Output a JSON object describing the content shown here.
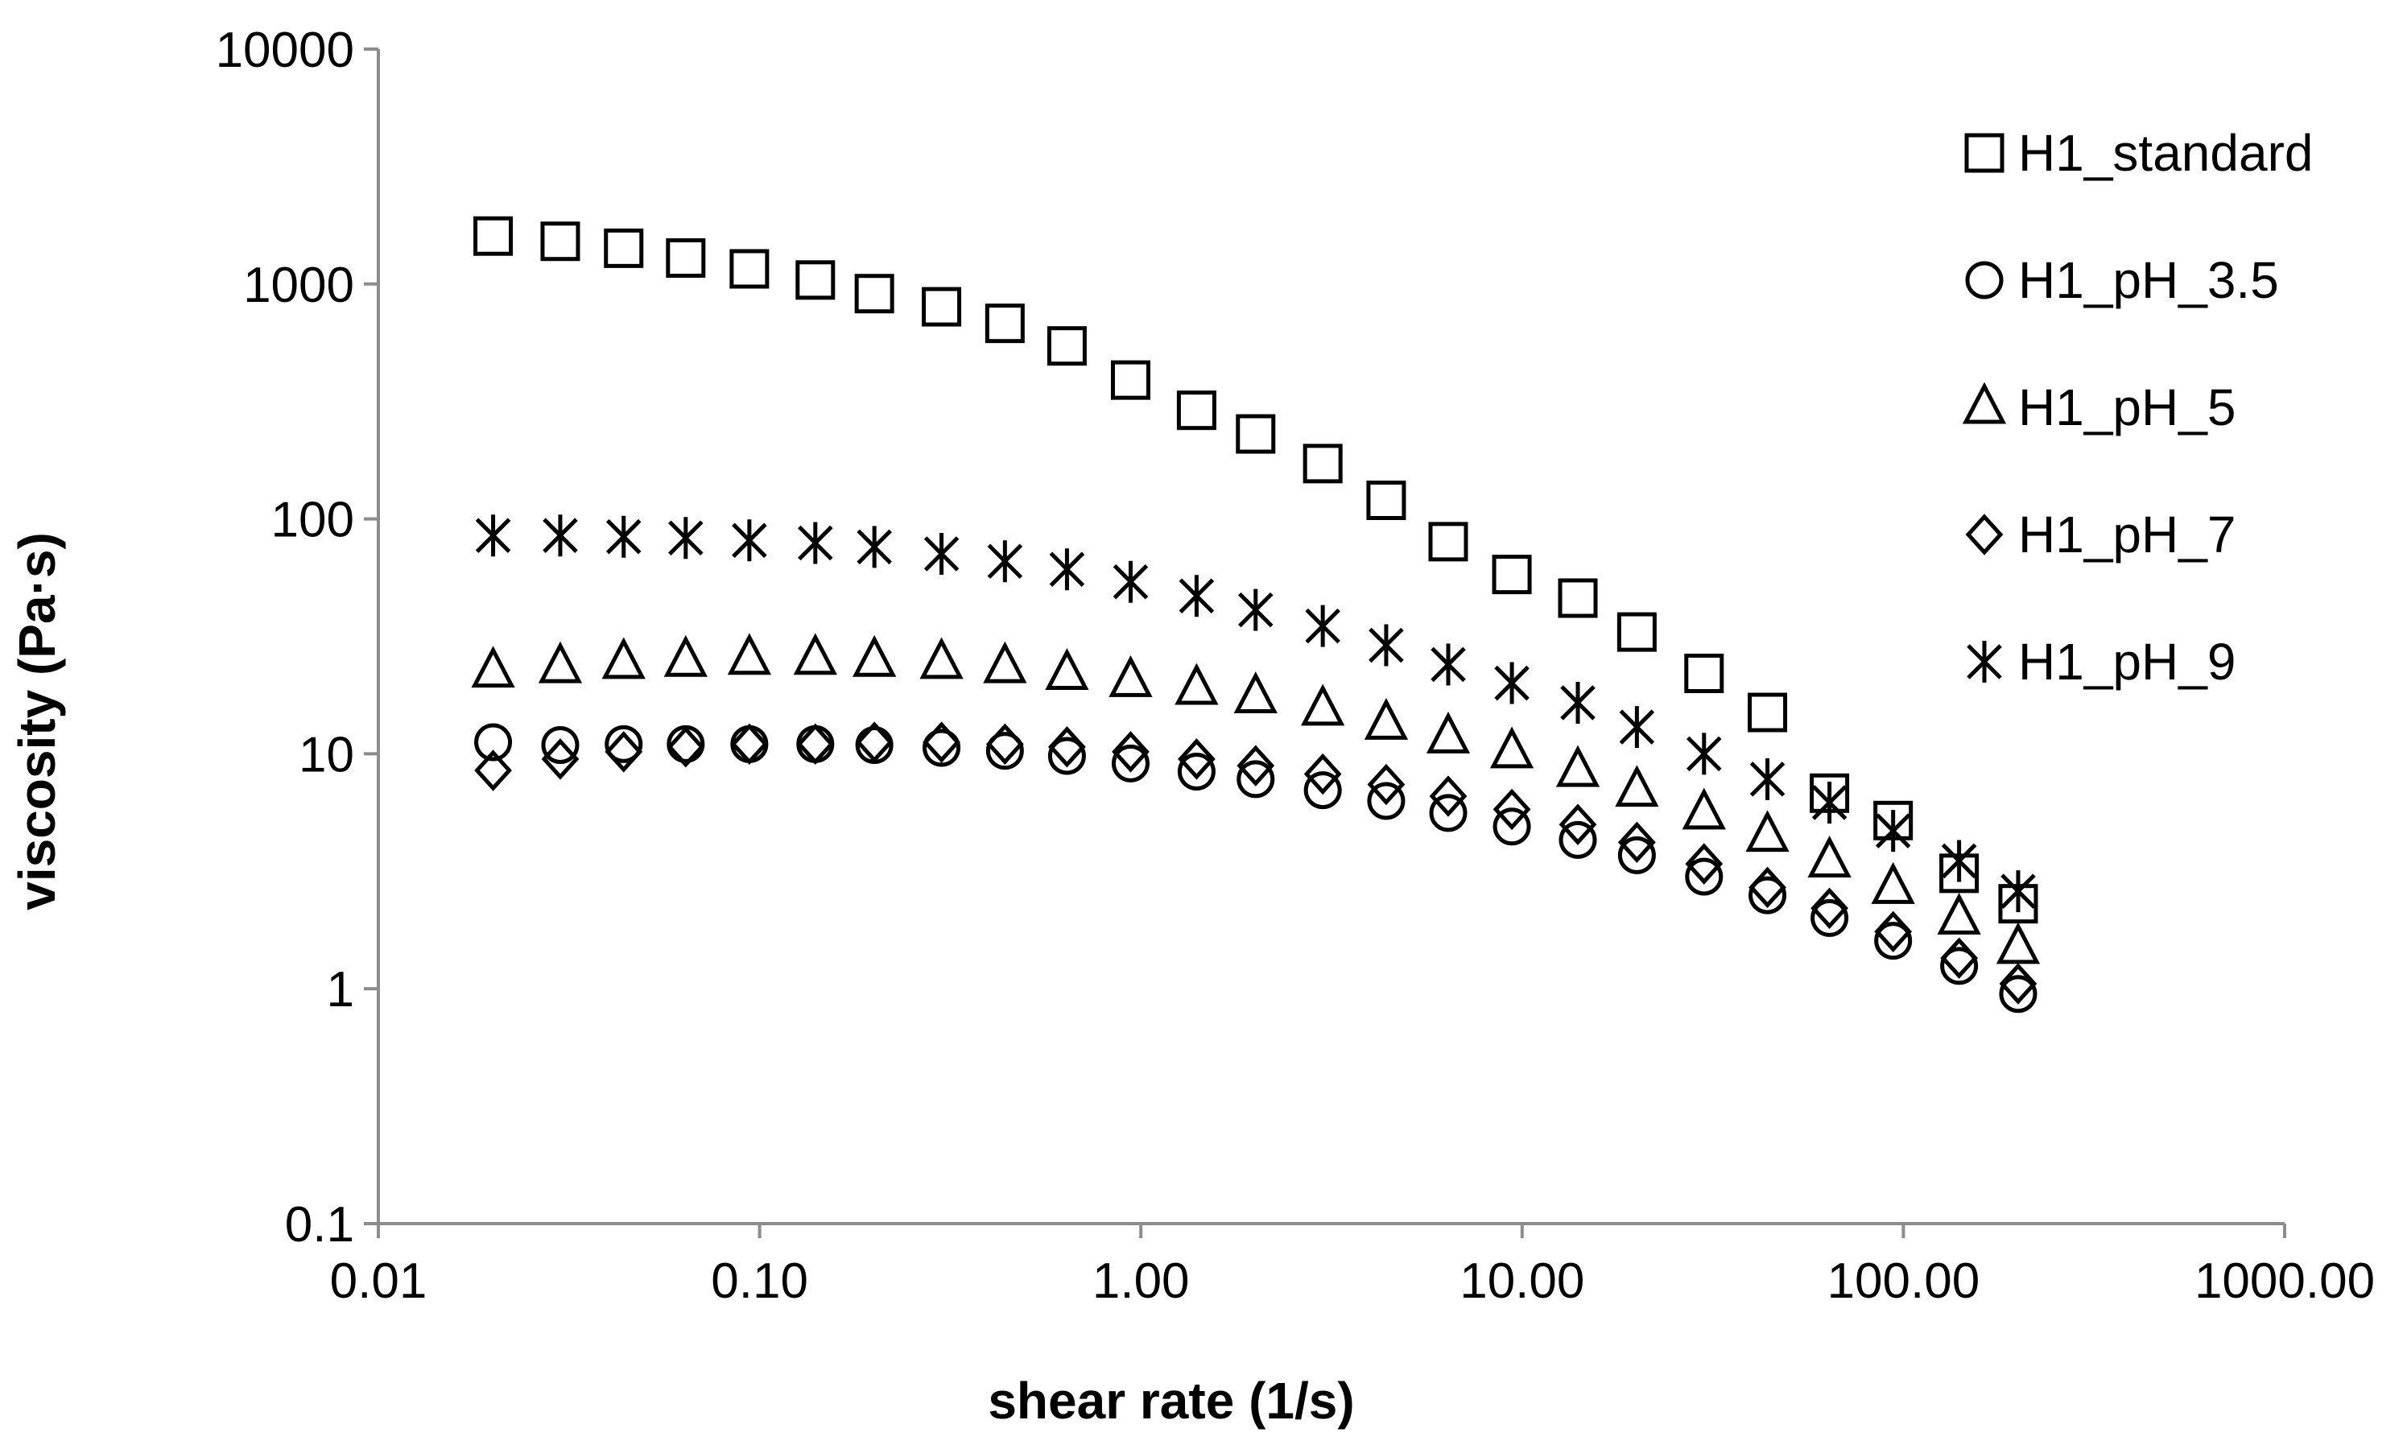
{
  "chart_data": {
    "type": "scatter",
    "title": "",
    "xlabel": "shear rate (1/s)",
    "ylabel": "viscosity (Pa·s)",
    "x_scale": "log",
    "y_scale": "log",
    "xlim": [
      0.01,
      1000
    ],
    "ylim": [
      0.1,
      10000
    ],
    "grid": false,
    "legend_position": "right",
    "x_ticks": [
      0.01,
      0.1,
      1,
      10,
      100,
      1000
    ],
    "x_tick_labels": [
      "0.01",
      "0.10",
      "1.00",
      "10.00",
      "100.00",
      "1000.00"
    ],
    "y_ticks": [
      0.1,
      1,
      10,
      100,
      1000,
      10000
    ],
    "y_tick_labels": [
      "0.1",
      "1",
      "10",
      "100",
      "1000",
      "10000"
    ],
    "x": [
      0.02,
      0.03,
      0.044,
      0.064,
      0.094,
      0.14,
      0.2,
      0.3,
      0.44,
      0.64,
      0.94,
      1.4,
      2,
      3,
      4.4,
      6.4,
      9.4,
      14,
      20,
      30,
      44,
      64,
      94,
      140,
      200
    ],
    "series": [
      {
        "name": "H1_standard",
        "marker": "square",
        "values": [
          1600,
          1520,
          1420,
          1290,
          1160,
          1040,
          910,
          800,
          680,
          545,
          390,
          290,
          230,
          172,
          120,
          80,
          58,
          46,
          33,
          22,
          15,
          6.8,
          5.2,
          3.1,
          2.3
        ]
      },
      {
        "name": "H1_pH_3.5",
        "marker": "circle",
        "values": [
          11.2,
          10.9,
          11.0,
          11.0,
          11.0,
          11.0,
          10.9,
          10.6,
          10.3,
          9.8,
          9.1,
          8.4,
          7.8,
          7.0,
          6.3,
          5.6,
          4.9,
          4.3,
          3.7,
          3.0,
          2.5,
          2.0,
          1.6,
          1.25,
          0.95
        ]
      },
      {
        "name": "H1_pH_5",
        "marker": "triangle",
        "values": [
          22.5,
          23.5,
          24.5,
          25,
          25.5,
          25.5,
          25,
          24.5,
          23.5,
          22,
          20.5,
          19,
          17.5,
          15.5,
          13.5,
          11.8,
          10.2,
          8.5,
          7.0,
          5.6,
          4.5,
          3.5,
          2.7,
          2.0,
          1.5
        ]
      },
      {
        "name": "H1_pH_7",
        "marker": "diamond",
        "values": [
          8.5,
          9.5,
          10.2,
          10.7,
          11.0,
          11.0,
          11.2,
          11.2,
          11.0,
          10.7,
          10.2,
          9.5,
          8.9,
          8.2,
          7.4,
          6.6,
          5.8,
          5.0,
          4.2,
          3.4,
          2.7,
          2.2,
          1.75,
          1.35,
          1.05
        ]
      },
      {
        "name": "H1_pH_9",
        "marker": "star",
        "values": [
          85,
          85,
          84,
          83,
          81,
          79,
          76,
          71,
          66,
          61,
          54,
          47,
          41,
          35,
          29,
          24,
          20,
          16.5,
          13,
          10,
          7.8,
          6.2,
          4.7,
          3.5,
          2.6
        ]
      }
    ]
  }
}
